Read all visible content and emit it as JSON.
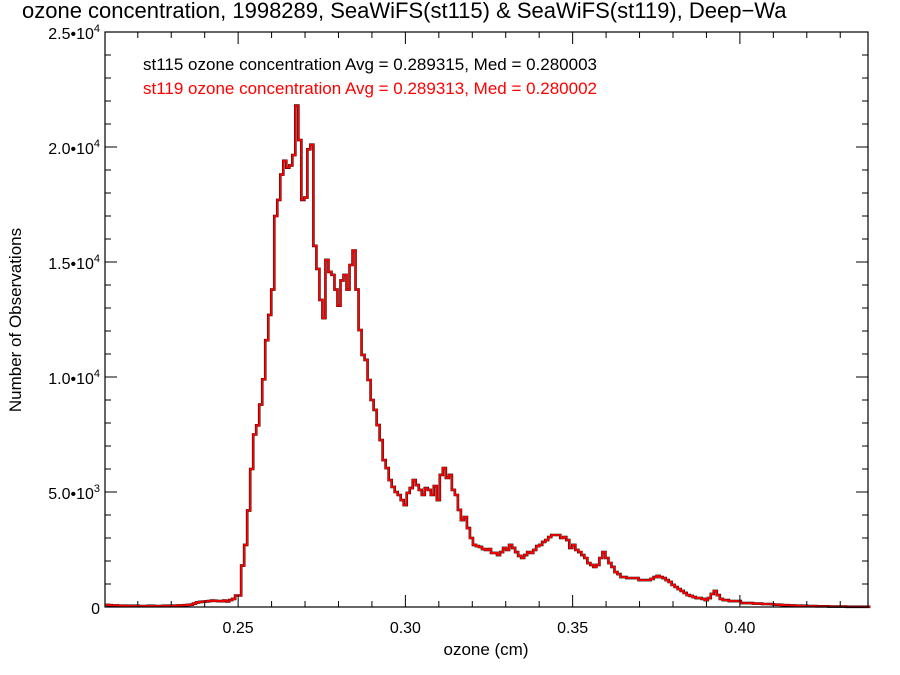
{
  "chart_data": {
    "type": "histogram",
    "title": "ozone concentration, 1998289, SeaWiFS(st115) & SeaWiFS(st119), Deep−Wa",
    "xlabel": "ozone (cm)",
    "ylabel": "Number of Observations",
    "xlim": [
      0.2102,
      0.4383
    ],
    "ylim": [
      0,
      25000
    ],
    "x_ticks": [
      {
        "value": 0.25,
        "label": "0.25"
      },
      {
        "value": 0.3,
        "label": "0.30"
      },
      {
        "value": 0.35,
        "label": "0.35"
      },
      {
        "value": 0.4,
        "label": "0.40"
      }
    ],
    "x_minor_step": 0.01,
    "y_ticks": [
      {
        "value": 0,
        "label": "0",
        "exp": ""
      },
      {
        "value": 5000,
        "label": "5.0•10",
        "exp": "3"
      },
      {
        "value": 10000,
        "label": "1.0•10",
        "exp": "4"
      },
      {
        "value": 15000,
        "label": "1.5•10",
        "exp": "4"
      },
      {
        "value": 20000,
        "label": "2.0•10",
        "exp": "4"
      },
      {
        "value": 25000,
        "label": "2.5•10",
        "exp": "4"
      }
    ],
    "y_minor_step": 1000,
    "annotations": [
      {
        "text": "st115 ozone concentration Avg = 0.289315, Med = 0.280003",
        "color": "#000000"
      },
      {
        "text": "st119 ozone concentration Avg = 0.289313, Med = 0.280002",
        "color": "#ff0000"
      }
    ],
    "series": [
      {
        "name": "st115",
        "color": "#000000"
      },
      {
        "name": "st119",
        "color": "#ff0000"
      }
    ],
    "bin_start": 0.2104,
    "bin_width": 0.0009,
    "counts": [
      90,
      80,
      70,
      70,
      60,
      60,
      60,
      50,
      50,
      50,
      50,
      40,
      40,
      40,
      50,
      50,
      40,
      40,
      40,
      50,
      50,
      60,
      60,
      60,
      70,
      70,
      80,
      90,
      100,
      150,
      200,
      220,
      230,
      240,
      260,
      280,
      270,
      260,
      250,
      280,
      240,
      300,
      350,
      500,
      500,
      1800,
      2700,
      4200,
      6000,
      7500,
      7900,
      8800,
      9900,
      11600,
      12700,
      13800,
      17000,
      17700,
      18800,
      19400,
      19100,
      19200,
      19650,
      21800,
      20300,
      17700,
      17800,
      19900,
      20100,
      15700,
      14700,
      13350,
      12560,
      15090,
      14570,
      14440,
      13800,
      13100,
      14200,
      14440,
      13800,
      14870,
      15500,
      13800,
      12040,
      10960,
      10740,
      9870,
      9000,
      8570,
      7910,
      7260,
      6390,
      6040,
      5520,
      5220,
      5000,
      4870,
      4650,
      4430,
      4960,
      5170,
      5520,
      5300,
      5090,
      4870,
      5170,
      5090,
      4870,
      5260,
      4650,
      5740,
      6040,
      5610,
      5740,
      5090,
      4870,
      4220,
      3780,
      3910,
      3430,
      3000,
      2700,
      2650,
      2610,
      2520,
      2480,
      2520,
      2350,
      2350,
      2260,
      2390,
      2570,
      2480,
      2700,
      2570,
      2390,
      2220,
      2130,
      2260,
      2390,
      2350,
      2480,
      2650,
      2700,
      2830,
      2910,
      3040,
      3130,
      3130,
      3130,
      3000,
      3040,
      2910,
      2570,
      2700,
      2480,
      2390,
      2260,
      2130,
      1910,
      1830,
      1740,
      1830,
      2130,
      2390,
      2130,
      1910,
      1740,
      1520,
      1430,
      1300,
      1300,
      1260,
      1260,
      1260,
      1260,
      1170,
      1170,
      1170,
      1170,
      1220,
      1300,
      1350,
      1300,
      1260,
      1170,
      1090,
      960,
      870,
      780,
      700,
      610,
      520,
      480,
      430,
      390,
      390,
      350,
      300,
      390,
      570,
      700,
      520,
      350,
      300,
      300,
      260,
      260,
      260,
      260,
      170,
      170,
      170,
      170,
      150,
      150,
      150,
      130,
      130,
      130,
      120,
      100,
      100,
      90,
      80,
      80,
      70,
      70,
      60,
      60,
      50,
      50,
      40,
      40,
      40,
      30,
      30,
      30,
      30,
      20,
      20,
      20,
      20,
      20,
      20,
      10,
      10,
      10,
      10,
      10,
      10,
      10,
      10,
      10
    ]
  }
}
